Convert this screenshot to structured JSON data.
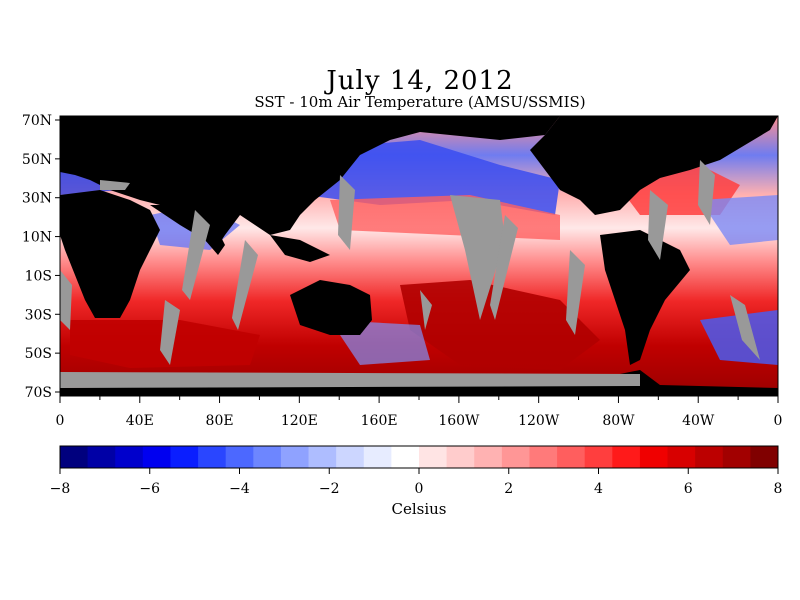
{
  "title": "July 14, 2012",
  "subtitle": "SST - 10m Air Temperature (AMSU/SSMIS)",
  "colors": {
    "land": "#000000",
    "no_data": "#999999",
    "neg_max": "#000080",
    "pos_max": "#800000"
  },
  "chart_data": {
    "type": "heatmap",
    "x_ticks": [
      "0",
      "40E",
      "80E",
      "120E",
      "160E",
      "160W",
      "120W",
      "80W",
      "40W",
      "0"
    ],
    "y_ticks": [
      "70N",
      "50N",
      "30N",
      "10N",
      "10S",
      "30S",
      "50S",
      "70S"
    ],
    "colorbar": {
      "min": -8,
      "max": 8,
      "ticks": [
        "-8",
        "-6",
        "-4",
        "-2",
        "0",
        "2",
        "4",
        "6",
        "8"
      ],
      "label": "Celsius",
      "segments": [
        "#00007e",
        "#0000a6",
        "#0000cc",
        "#0000f0",
        "#0a1eff",
        "#2a46ff",
        "#4c68ff",
        "#6d86ff",
        "#8fa2ff",
        "#aebdff",
        "#ccd6ff",
        "#e7ecff",
        "#ffffff",
        "#ffe4e4",
        "#ffcccc",
        "#ffb2b2",
        "#ff9696",
        "#ff7a7a",
        "#ff5e5e",
        "#ff3e3e",
        "#ff1a1a",
        "#f00000",
        "#d80000",
        "#bc0000",
        "#a20000",
        "#800000"
      ]
    }
  }
}
